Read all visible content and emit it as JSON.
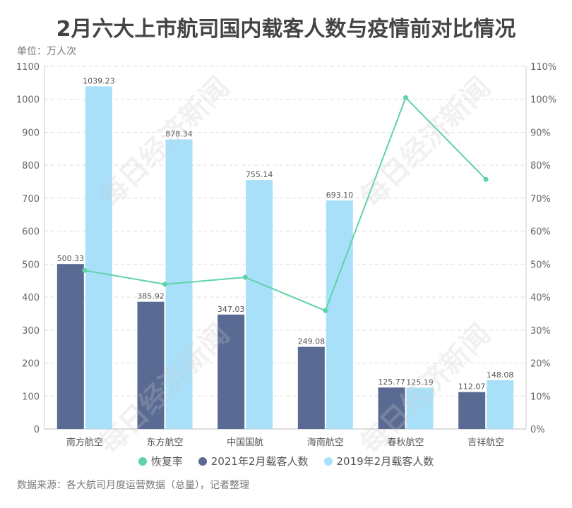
{
  "title": "2月六大上市航司国内载客人数与疫情前对比情况",
  "unit": "单位：万人次",
  "source": "数据来源：各大航司月度运营数据（总量），记者整理",
  "watermark": "每日经济新闻",
  "colors": {
    "rate": "#5fd3a7",
    "y2021": "#5a6b93",
    "y2019": "#a8e0fa"
  },
  "chart_data": {
    "type": "bar",
    "title": "2月六大上市航司国内载客人数与疫情前对比情况",
    "categories": [
      "南方航空",
      "东方航空",
      "中国国航",
      "海南航空",
      "春秋航空",
      "吉祥航空"
    ],
    "series": [
      {
        "name": "2021年2月载客人数",
        "type": "bar",
        "axis": "left",
        "values": [
          500.33,
          385.92,
          347.03,
          249.08,
          125.77,
          112.07
        ],
        "labels": [
          "500.33",
          "385.92",
          "347.03",
          "249.08",
          "125.77",
          "112.07"
        ]
      },
      {
        "name": "2019年2月载客人数",
        "type": "bar",
        "axis": "left",
        "values": [
          1039.23,
          878.34,
          755.14,
          693.1,
          125.19,
          148.08
        ],
        "labels": [
          "1039.23",
          "878.34",
          "755.14",
          "693.10",
          "125.19",
          "148.08"
        ]
      },
      {
        "name": "恢复率",
        "type": "line",
        "axis": "right",
        "values": [
          48.1,
          43.9,
          46.0,
          35.9,
          100.5,
          75.7
        ]
      }
    ],
    "ylim": [
      0,
      1100
    ],
    "yticks": [
      "0",
      "100",
      "200",
      "300",
      "400",
      "500",
      "600",
      "700",
      "800",
      "900",
      "1000",
      "1100"
    ],
    "y2lim": [
      0,
      110
    ],
    "y2ticks": [
      "0%",
      "10%",
      "20%",
      "30%",
      "40%",
      "50%",
      "60%",
      "70%",
      "80%",
      "90%",
      "100%",
      "110%"
    ],
    "grid": true,
    "legend": "bottom"
  }
}
